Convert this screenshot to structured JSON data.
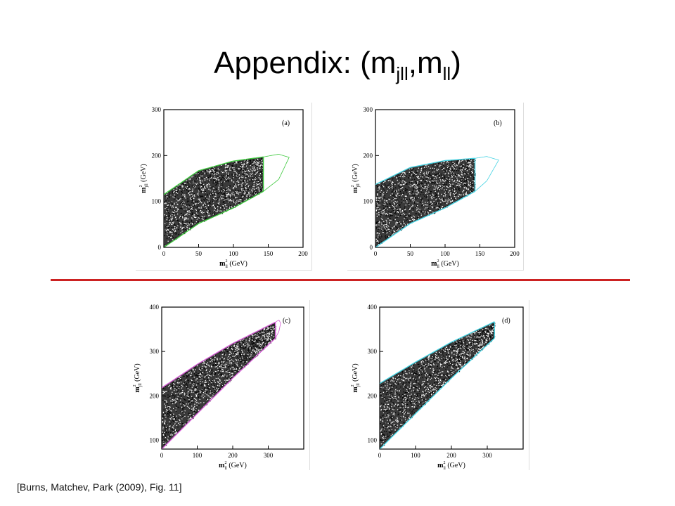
{
  "slide": {
    "title_main": "Appendix:  (m",
    "title_sub1": "jll",
    "title_mid": ",m",
    "title_sub2": "ll",
    "title_end": ")",
    "citation": "[Burns, Matchev, Park (2009), Fig. 11]"
  },
  "chart_data": [
    {
      "type": "scatter",
      "panel_label": "(a)",
      "xlabel_main": "m",
      "xlabel_sub": "ll",
      "xlabel_sup": "2",
      "xlabel_unit": "(GeV)",
      "ylabel_main": "m",
      "ylabel_sub": "jll",
      "ylabel_sup": "2",
      "ylabel_unit": "(GeV)",
      "xlim": [
        0,
        200
      ],
      "ylim": [
        0,
        300
      ],
      "xticks": [
        0,
        50,
        100,
        150,
        200
      ],
      "xtick_labels": [
        "0",
        "50",
        "100",
        "150",
        "200"
      ],
      "yticks": [
        0,
        100,
        200,
        300
      ],
      "ytick_labels": [
        "0",
        "100",
        "200",
        "300"
      ],
      "boundary_color": "#3ec93e",
      "region": {
        "x_cut": 143,
        "upper": [
          [
            0,
            115
          ],
          [
            50,
            167
          ],
          [
            100,
            188
          ],
          [
            143,
            197
          ]
        ],
        "lower": [
          [
            0,
            0
          ],
          [
            50,
            52
          ],
          [
            100,
            86
          ],
          [
            143,
            122
          ]
        ],
        "closed_lower_y": 0
      },
      "ellipse": {
        "tip_x": 180,
        "upper": [
          [
            143,
            197
          ],
          [
            165,
            203
          ],
          [
            180,
            196
          ]
        ],
        "lower": [
          [
            143,
            122
          ],
          [
            165,
            148
          ],
          [
            180,
            196
          ]
        ]
      }
    },
    {
      "type": "scatter",
      "panel_label": "(b)",
      "xlabel_main": "m",
      "xlabel_sub": "ll",
      "xlabel_sup": "2",
      "xlabel_unit": "(GeV)",
      "ylabel_main": "m",
      "ylabel_sub": "jll",
      "ylabel_sup": "2",
      "ylabel_unit": "(GeV)",
      "xlim": [
        0,
        200
      ],
      "ylim": [
        0,
        300
      ],
      "xticks": [
        0,
        50,
        100,
        150,
        200
      ],
      "xtick_labels": [
        "0",
        "50",
        "100",
        "150",
        "200"
      ],
      "yticks": [
        0,
        100,
        200,
        300
      ],
      "ytick_labels": [
        "0",
        "100",
        "200",
        "300"
      ],
      "boundary_color": "#45d3e3",
      "region": {
        "x_cut": 143,
        "upper": [
          [
            0,
            137
          ],
          [
            50,
            174
          ],
          [
            100,
            189
          ],
          [
            143,
            194
          ]
        ],
        "lower": [
          [
            0,
            0
          ],
          [
            50,
            52
          ],
          [
            100,
            86
          ],
          [
            143,
            122
          ]
        ],
        "closed_lower_y": 0
      },
      "ellipse": {
        "tip_x": 177,
        "upper": [
          [
            143,
            194
          ],
          [
            160,
            198
          ],
          [
            177,
            190
          ]
        ],
        "lower": [
          [
            143,
            122
          ],
          [
            160,
            145
          ],
          [
            177,
            190
          ]
        ]
      }
    },
    {
      "type": "scatter",
      "panel_label": "(c)",
      "xlabel_main": "m",
      "xlabel_sub": "ll",
      "xlabel_sup": "2",
      "xlabel_unit": "(GeV)",
      "ylabel_main": "m",
      "ylabel_sub": "jll",
      "ylabel_sup": "2",
      "ylabel_unit": "(GeV)",
      "xlim": [
        0,
        400
      ],
      "ylim": [
        80,
        400
      ],
      "xticks": [
        0,
        100,
        200,
        300
      ],
      "xtick_labels": [
        "0",
        "100",
        "200",
        "300"
      ],
      "yticks": [
        100,
        200,
        300,
        400
      ],
      "ytick_labels": [
        "100",
        "200",
        "300",
        "400"
      ],
      "boundary_color": "#d35ad3",
      "region": {
        "x_cut": 320,
        "upper": [
          [
            0,
            218
          ],
          [
            100,
            271
          ],
          [
            200,
            318
          ],
          [
            320,
            366
          ]
        ],
        "lower": [
          [
            0,
            80
          ],
          [
            100,
            160
          ],
          [
            200,
            240
          ],
          [
            320,
            330
          ]
        ],
        "closed_lower_y": 80
      },
      "ellipse": {
        "tip_x": 335,
        "upper": [
          [
            320,
            366
          ],
          [
            330,
            371
          ],
          [
            335,
            364
          ]
        ],
        "lower": [
          [
            320,
            330
          ],
          [
            330,
            345
          ],
          [
            335,
            364
          ]
        ]
      }
    },
    {
      "type": "scatter",
      "panel_label": "(d)",
      "xlabel_main": "m",
      "xlabel_sub": "ll",
      "xlabel_sup": "2",
      "xlabel_unit": "(GeV)",
      "ylabel_main": "m",
      "ylabel_sub": "jll",
      "ylabel_sup": "2",
      "ylabel_unit": "(GeV)",
      "xlim": [
        0,
        400
      ],
      "ylim": [
        80,
        400
      ],
      "xticks": [
        0,
        100,
        200,
        300
      ],
      "xtick_labels": [
        "0",
        "100",
        "200",
        "300"
      ],
      "yticks": [
        100,
        200,
        300,
        400
      ],
      "ytick_labels": [
        "100",
        "200",
        "300",
        "400"
      ],
      "boundary_color": "#45d3e3",
      "region": {
        "x_cut": 320,
        "upper": [
          [
            0,
            228
          ],
          [
            100,
            276
          ],
          [
            200,
            321
          ],
          [
            320,
            367
          ]
        ],
        "lower": [
          [
            0,
            80
          ],
          [
            100,
            160
          ],
          [
            200,
            240
          ],
          [
            320,
            330
          ]
        ],
        "closed_lower_y": 80
      },
      "ellipse": null
    }
  ]
}
